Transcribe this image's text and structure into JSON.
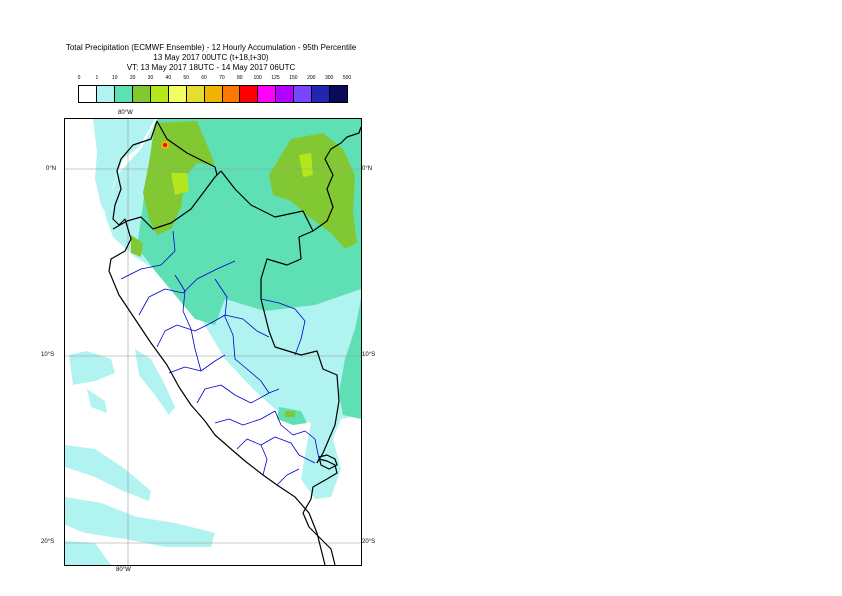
{
  "title": {
    "line1": "Total Precipitation (ECMWF Ensemble) - 12 Hourly Accumulation - 95th Percentile",
    "line2": "13 May 2017 00UTC (t+18,t+30)",
    "line3": "VT: 13 May 2017 18UTC - 14 May 2017 06UTC"
  },
  "legend": {
    "thresholds": [
      "0",
      "1",
      "10",
      "20",
      "30",
      "40",
      "50",
      "60",
      "70",
      "80",
      "100",
      "125",
      "150",
      "200",
      "300",
      "500"
    ],
    "colors": [
      "#ffffff",
      "#b0f3f0",
      "#5fe0b4",
      "#82c832",
      "#b4e61e",
      "#f0ff64",
      "#e6dc32",
      "#f0b400",
      "#ff7800",
      "#ff0000",
      "#ff00ff",
      "#b400ff",
      "#7846ff",
      "#2323b4",
      "#0a0a5a"
    ]
  },
  "map": {
    "lon_top": "80°W",
    "lon_bottom": "80°W",
    "lat_0_left": "0°N",
    "lat_0_right": "0°N",
    "lat_10_left": "10°S",
    "lat_10_right": "10°S",
    "lat_20_left": "20°S",
    "lat_20_right": "20°S"
  },
  "colors": {
    "land_fill": "#b0f3f0",
    "wet_fill": "#5fe0b4",
    "heavy_fill": "#82c832",
    "peak_fill": "#b4e61e",
    "coast": "#000000",
    "region_border": "#0000c8",
    "grid": "#9a9a9a"
  }
}
